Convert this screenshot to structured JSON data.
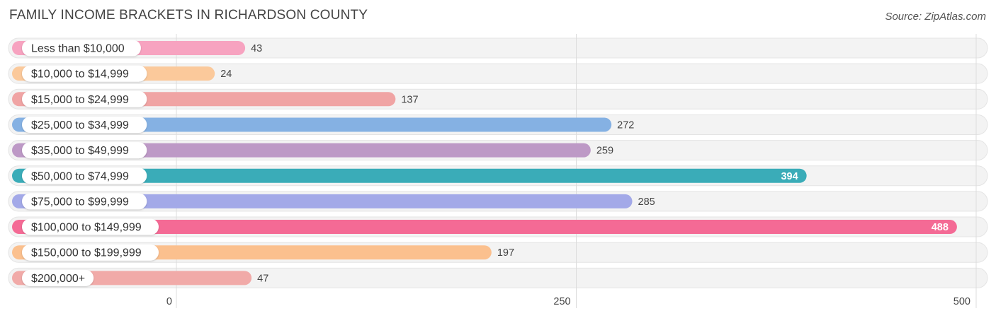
{
  "header": {
    "title": "FAMILY INCOME BRACKETS IN RICHARDSON COUNTY",
    "source": "Source: ZipAtlas.com"
  },
  "chart_data": {
    "type": "bar",
    "orientation": "horizontal",
    "title": "FAMILY INCOME BRACKETS IN RICHARDSON COUNTY",
    "xlabel": "",
    "ylabel": "",
    "xlim": [
      0,
      500
    ],
    "xticks": [
      0,
      250,
      500
    ],
    "grid": true,
    "categories": [
      "Less than $10,000",
      "$10,000 to $14,999",
      "$15,000 to $24,999",
      "$25,000 to $34,999",
      "$35,000 to $49,999",
      "$50,000 to $74,999",
      "$75,000 to $99,999",
      "$100,000 to $149,999",
      "$150,000 to $199,999",
      "$200,000+"
    ],
    "values": [
      43,
      24,
      137,
      272,
      259,
      394,
      285,
      488,
      197,
      47
    ],
    "colors": [
      "#f7a3c0",
      "#fbc99b",
      "#f0a4a4",
      "#85b1e3",
      "#bd99c6",
      "#3aacb8",
      "#a3a9e8",
      "#f46a95",
      "#fbc08e",
      "#f1aaa8"
    ]
  }
}
